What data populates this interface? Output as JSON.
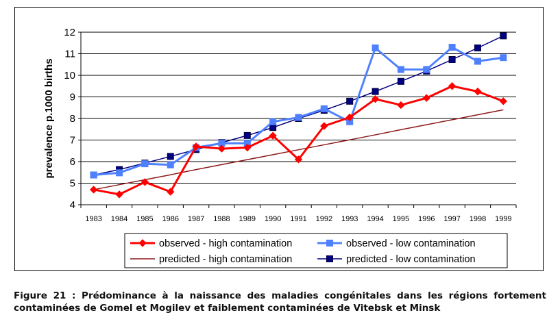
{
  "chart_data": {
    "type": "line",
    "title": "",
    "xlabel": "",
    "ylabel": "prevalence p.1000 births",
    "ylim": [
      4,
      12
    ],
    "yticks": [
      "4",
      "5",
      "6",
      "7",
      "8",
      "9",
      "10",
      "11",
      "12"
    ],
    "categories": [
      "1983",
      "1984",
      "1985",
      "1986",
      "1987",
      "1988",
      "1989",
      "1990",
      "1991",
      "1992",
      "1993",
      "1994",
      "1995",
      "1996",
      "1997",
      "1998",
      "1999"
    ],
    "grid": "horizontal",
    "legend_position": "bottom",
    "series": [
      {
        "name": "observed - high contamination",
        "color": "#ff0000",
        "marker": "diamond",
        "style": "thick",
        "values": [
          4.7,
          4.48,
          5.05,
          4.6,
          6.7,
          6.6,
          6.65,
          7.2,
          6.1,
          7.65,
          8.05,
          8.9,
          8.62,
          8.95,
          9.5,
          9.25,
          8.8
        ]
      },
      {
        "name": "observed - low contamination",
        "color": "#4f81ff",
        "marker": "square",
        "style": "thick",
        "values": [
          5.38,
          5.48,
          5.9,
          5.85,
          6.65,
          6.85,
          6.85,
          7.85,
          8.05,
          8.45,
          7.85,
          11.27,
          10.27,
          10.27,
          11.3,
          10.65,
          10.82
        ]
      },
      {
        "name": "predicted - high contamination",
        "color": "#8b1a1a",
        "marker": "none",
        "style": "thin",
        "values": [
          4.7,
          4.93,
          5.16,
          5.39,
          5.63,
          5.86,
          6.09,
          6.32,
          6.55,
          6.78,
          7.01,
          7.24,
          7.48,
          7.71,
          7.94,
          8.17,
          8.4
        ]
      },
      {
        "name": "predicted - low contamination",
        "color": "#000080",
        "marker": "square",
        "style": "thin",
        "values": [
          5.38,
          5.63,
          5.93,
          6.24,
          6.56,
          6.88,
          7.21,
          7.58,
          8.0,
          8.38,
          8.8,
          9.25,
          9.72,
          10.2,
          10.73,
          11.27,
          11.83
        ]
      }
    ],
    "legend": [
      [
        "observed - high contamination",
        "observed - low contamination"
      ],
      [
        "predicted - high contamination",
        "predicted - low contamination"
      ]
    ]
  },
  "caption": {
    "line1": "Figure 21 : Prédominance à la naissance des maladies congénitales dans les régions fortement",
    "line2": "contaminées de Gomel et Mogilev et faiblement contaminées de Vitebsk et Minsk"
  }
}
